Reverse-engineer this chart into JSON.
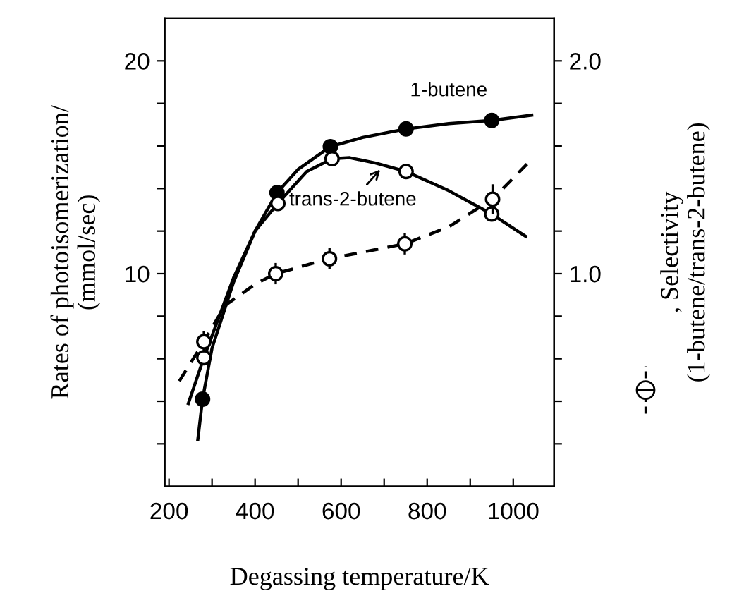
{
  "chart_data": {
    "type": "line",
    "xlabel": "Degassing temperature/K",
    "ylabel": "Rates of photoisomerization/\n(mmol/sec)",
    "y2label": ", Selectivity\n(1-butene/trans-2-butene)",
    "xlim": [
      190,
      1095
    ],
    "ylim": [
      0,
      22
    ],
    "y2lim": [
      0,
      2.2
    ],
    "xticks": [
      200,
      {
        "value": 300,
        "label": null
      },
      400,
      {
        "value": 500,
        "label": null
      },
      600,
      {
        "value": 700,
        "label": null
      },
      800,
      {
        "value": 900,
        "label": null
      },
      1000
    ],
    "yticks": [
      {
        "value": 2,
        "label": null
      },
      {
        "value": 4,
        "label": null
      },
      {
        "value": 6,
        "label": null
      },
      {
        "value": 8,
        "label": null
      },
      10,
      {
        "value": 12,
        "label": null
      },
      {
        "value": 14,
        "label": null
      },
      {
        "value": 16,
        "label": null
      },
      {
        "value": 18,
        "label": null
      },
      20
    ],
    "y2ticks": [
      {
        "value": 0.2,
        "label": null
      },
      {
        "value": 0.4,
        "label": null
      },
      {
        "value": 0.6,
        "label": null
      },
      {
        "value": 0.8,
        "label": null
      },
      {
        "value": 1.0,
        "label": "1.0"
      },
      {
        "value": 1.2,
        "label": null
      },
      {
        "value": 1.4,
        "label": null
      },
      {
        "value": 1.6,
        "label": null
      },
      {
        "value": 1.8,
        "label": null
      },
      {
        "value": 2.0,
        "label": "2.0"
      }
    ],
    "grid": false,
    "legend": false,
    "series": [
      {
        "color": "#000000",
        "line_style": "solid",
        "marker": "none",
        "x": [
          267,
          278,
          300,
          350,
          400,
          451,
          500,
          575,
          650,
          751,
          850,
          950,
          1043
        ],
        "values": [
          2.2,
          4.1,
          6.5,
          9.6,
          12.0,
          13.8,
          14.9,
          15.97,
          16.4,
          16.8,
          17.05,
          17.2,
          17.45
        ]
      },
      {
        "color": "#000000",
        "line_style": "solid",
        "marker": "none",
        "x": [
          245,
          281,
          350,
          400,
          453,
          520,
          579,
          620,
          680,
          751,
          850,
          950,
          1029
        ],
        "values": [
          3.9,
          6.05,
          9.8,
          12.0,
          13.3,
          14.8,
          15.4,
          15.45,
          15.2,
          14.8,
          13.9,
          12.8,
          11.75
        ]
      },
      {
        "axis": "y2",
        "color": "#000000",
        "line_style": "dashed",
        "marker": "none",
        "x": [
          224,
          281,
          330,
          400,
          448,
          573,
          748,
          850,
          952,
          1032
        ],
        "values": [
          0.495,
          0.68,
          0.85,
          0.95,
          1.0,
          1.07,
          1.14,
          1.22,
          1.35,
          1.515
        ]
      },
      {
        "type": "scatter",
        "color": "#000000",
        "marker": "circle",
        "x": [
          278,
          451,
          575,
          751,
          950
        ],
        "values": [
          4.1,
          13.8,
          15.97,
          16.8,
          17.2
        ]
      },
      {
        "type": "scatter",
        "color": "#ffffff",
        "marker": "circle",
        "x": [
          281,
          453,
          579,
          751,
          950
        ],
        "values": [
          6.05,
          13.3,
          15.4,
          14.8,
          12.8
        ]
      },
      {
        "type": "scatter",
        "axis": "y2",
        "color": "#ffffff",
        "marker": "circle",
        "x": [
          281,
          448,
          573,
          748,
          952
        ],
        "values": [
          0.68,
          1.0,
          1.07,
          1.14,
          1.35
        ],
        "errors": [
          0.05,
          0.05,
          0.05,
          0.05,
          0.07
        ]
      }
    ],
    "annotations": [
      {
        "text": "1-butene",
        "x": 850,
        "y": 17.05
      },
      {
        "text": "trans-2-butene",
        "x": 700,
        "y": 15.1
      }
    ]
  }
}
